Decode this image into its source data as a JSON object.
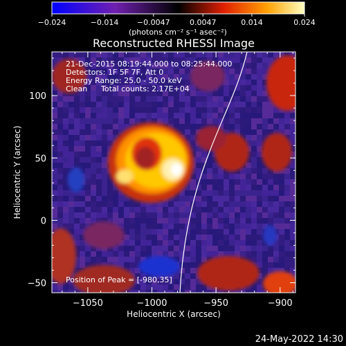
{
  "colorbar": {
    "tick_labels": [
      "−0.024",
      "−0.014",
      "−0.0047",
      "0.0047",
      "0.014",
      "0.024"
    ],
    "tick_values": [
      -0.024,
      -0.014,
      -0.0047,
      0.0047,
      0.014,
      0.024
    ],
    "range": [
      -0.024,
      0.024
    ],
    "units_label": "(photons cm⁻² s⁻¹ asec⁻²)"
  },
  "chart_data": {
    "type": "heatmap",
    "title": "Reconstructed RHESSI Image",
    "xlabel": "Heliocentric X (arcsec)",
    "ylabel": "Heliocentric Y (arcsec)",
    "xlim": [
      -1078,
      -888
    ],
    "ylim": [
      -58,
      135
    ],
    "x_ticks": [
      -1050,
      -1000,
      -950,
      -900
    ],
    "x_tick_labels": [
      "−1050",
      "−1000",
      "−950",
      "−900"
    ],
    "y_ticks": [
      -50,
      0,
      50,
      100
    ],
    "y_tick_labels": [
      "−50",
      "0",
      "50",
      "100"
    ],
    "peak_x": -980,
    "peak_y": 35,
    "colormap": [
      "#0000ff",
      "#7c2ca0",
      "#e02000",
      "#ffc800",
      "#ffffff"
    ]
  },
  "annotations": {
    "time_range": "21-Dec-2015 08:19:44.000 to 08:25:44.000",
    "detectors": "Detectors: 1F 5F 7F, Att 0",
    "energy_range": "Energy Range: 25.0 - 50.0 keV",
    "method": "Clean",
    "total_counts": "Total counts: 2.17E+04",
    "peak_position": "Position of Peak = [-980,35]"
  },
  "footer": {
    "timestamp": "24-May-2022 14:30"
  }
}
